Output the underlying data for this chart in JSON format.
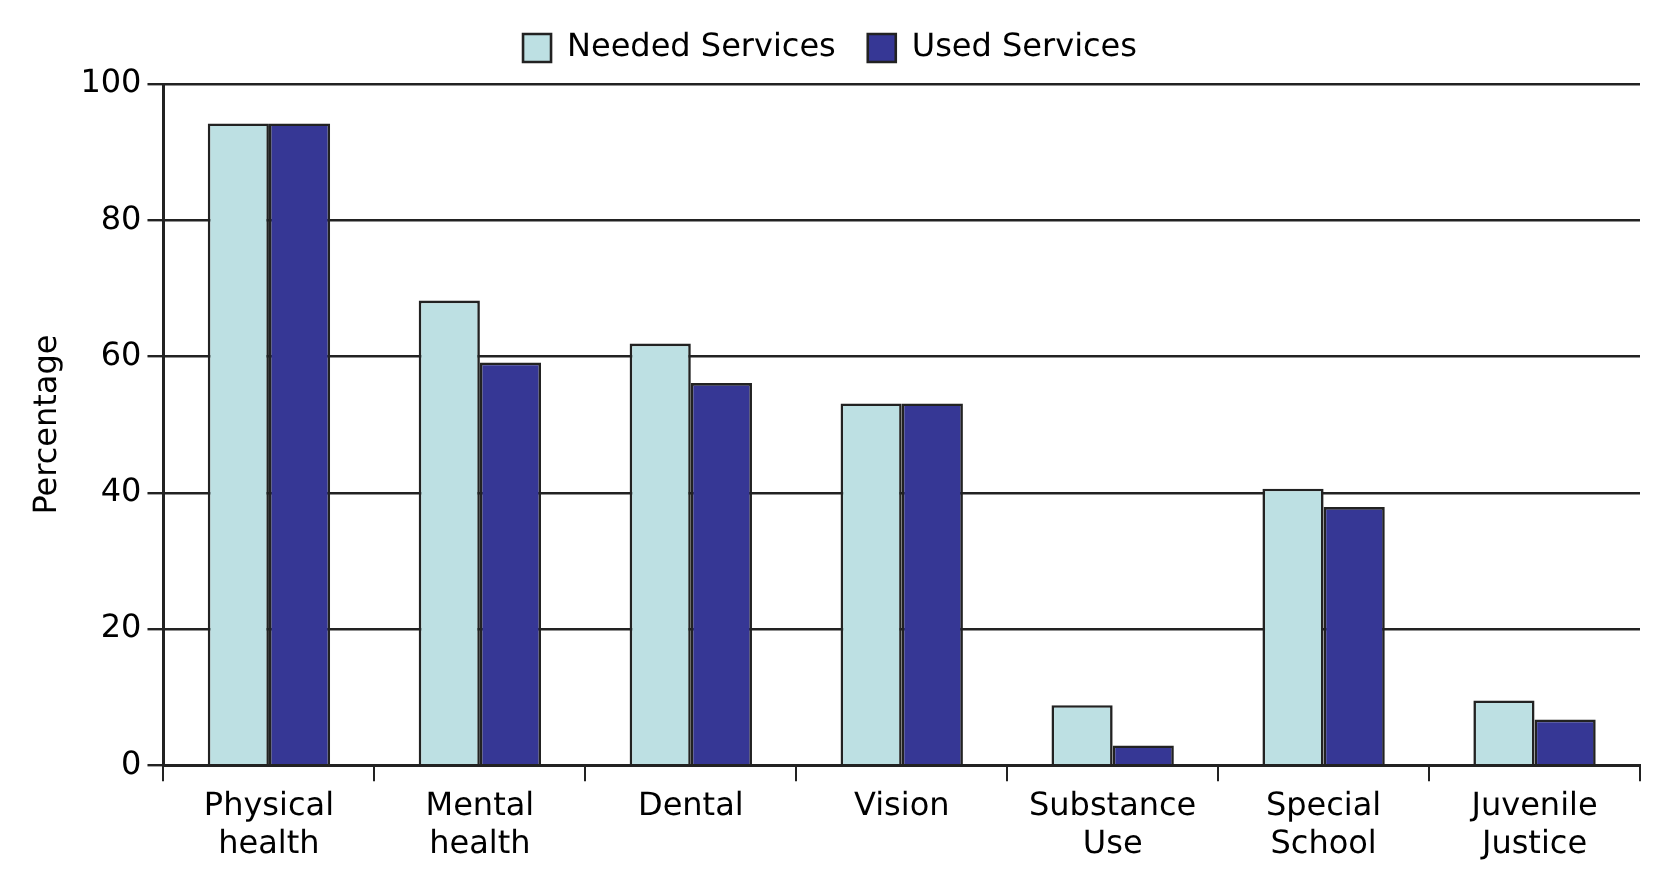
{
  "chart_data": {
    "type": "bar",
    "ylabel": "Percentage",
    "categories": [
      "Physical health",
      "Mental health",
      "Dental",
      "Vision",
      "Substance Use",
      "Special School",
      "Juvenile Justice"
    ],
    "series": [
      {
        "name": "Needed Services",
        "color": "#bde0e3",
        "values": [
          94.2,
          68.2,
          61.9,
          53.1,
          8.8,
          40.6,
          9.5
        ]
      },
      {
        "name": "Used Services",
        "color": "#363795",
        "values": [
          94.2,
          59.1,
          56.1,
          53.1,
          2.9,
          37.9,
          6.7
        ]
      }
    ],
    "ylim": [
      0,
      100
    ],
    "yticks": [
      0,
      20,
      40,
      60,
      80,
      100
    ],
    "grid": "y",
    "legend": "top"
  }
}
